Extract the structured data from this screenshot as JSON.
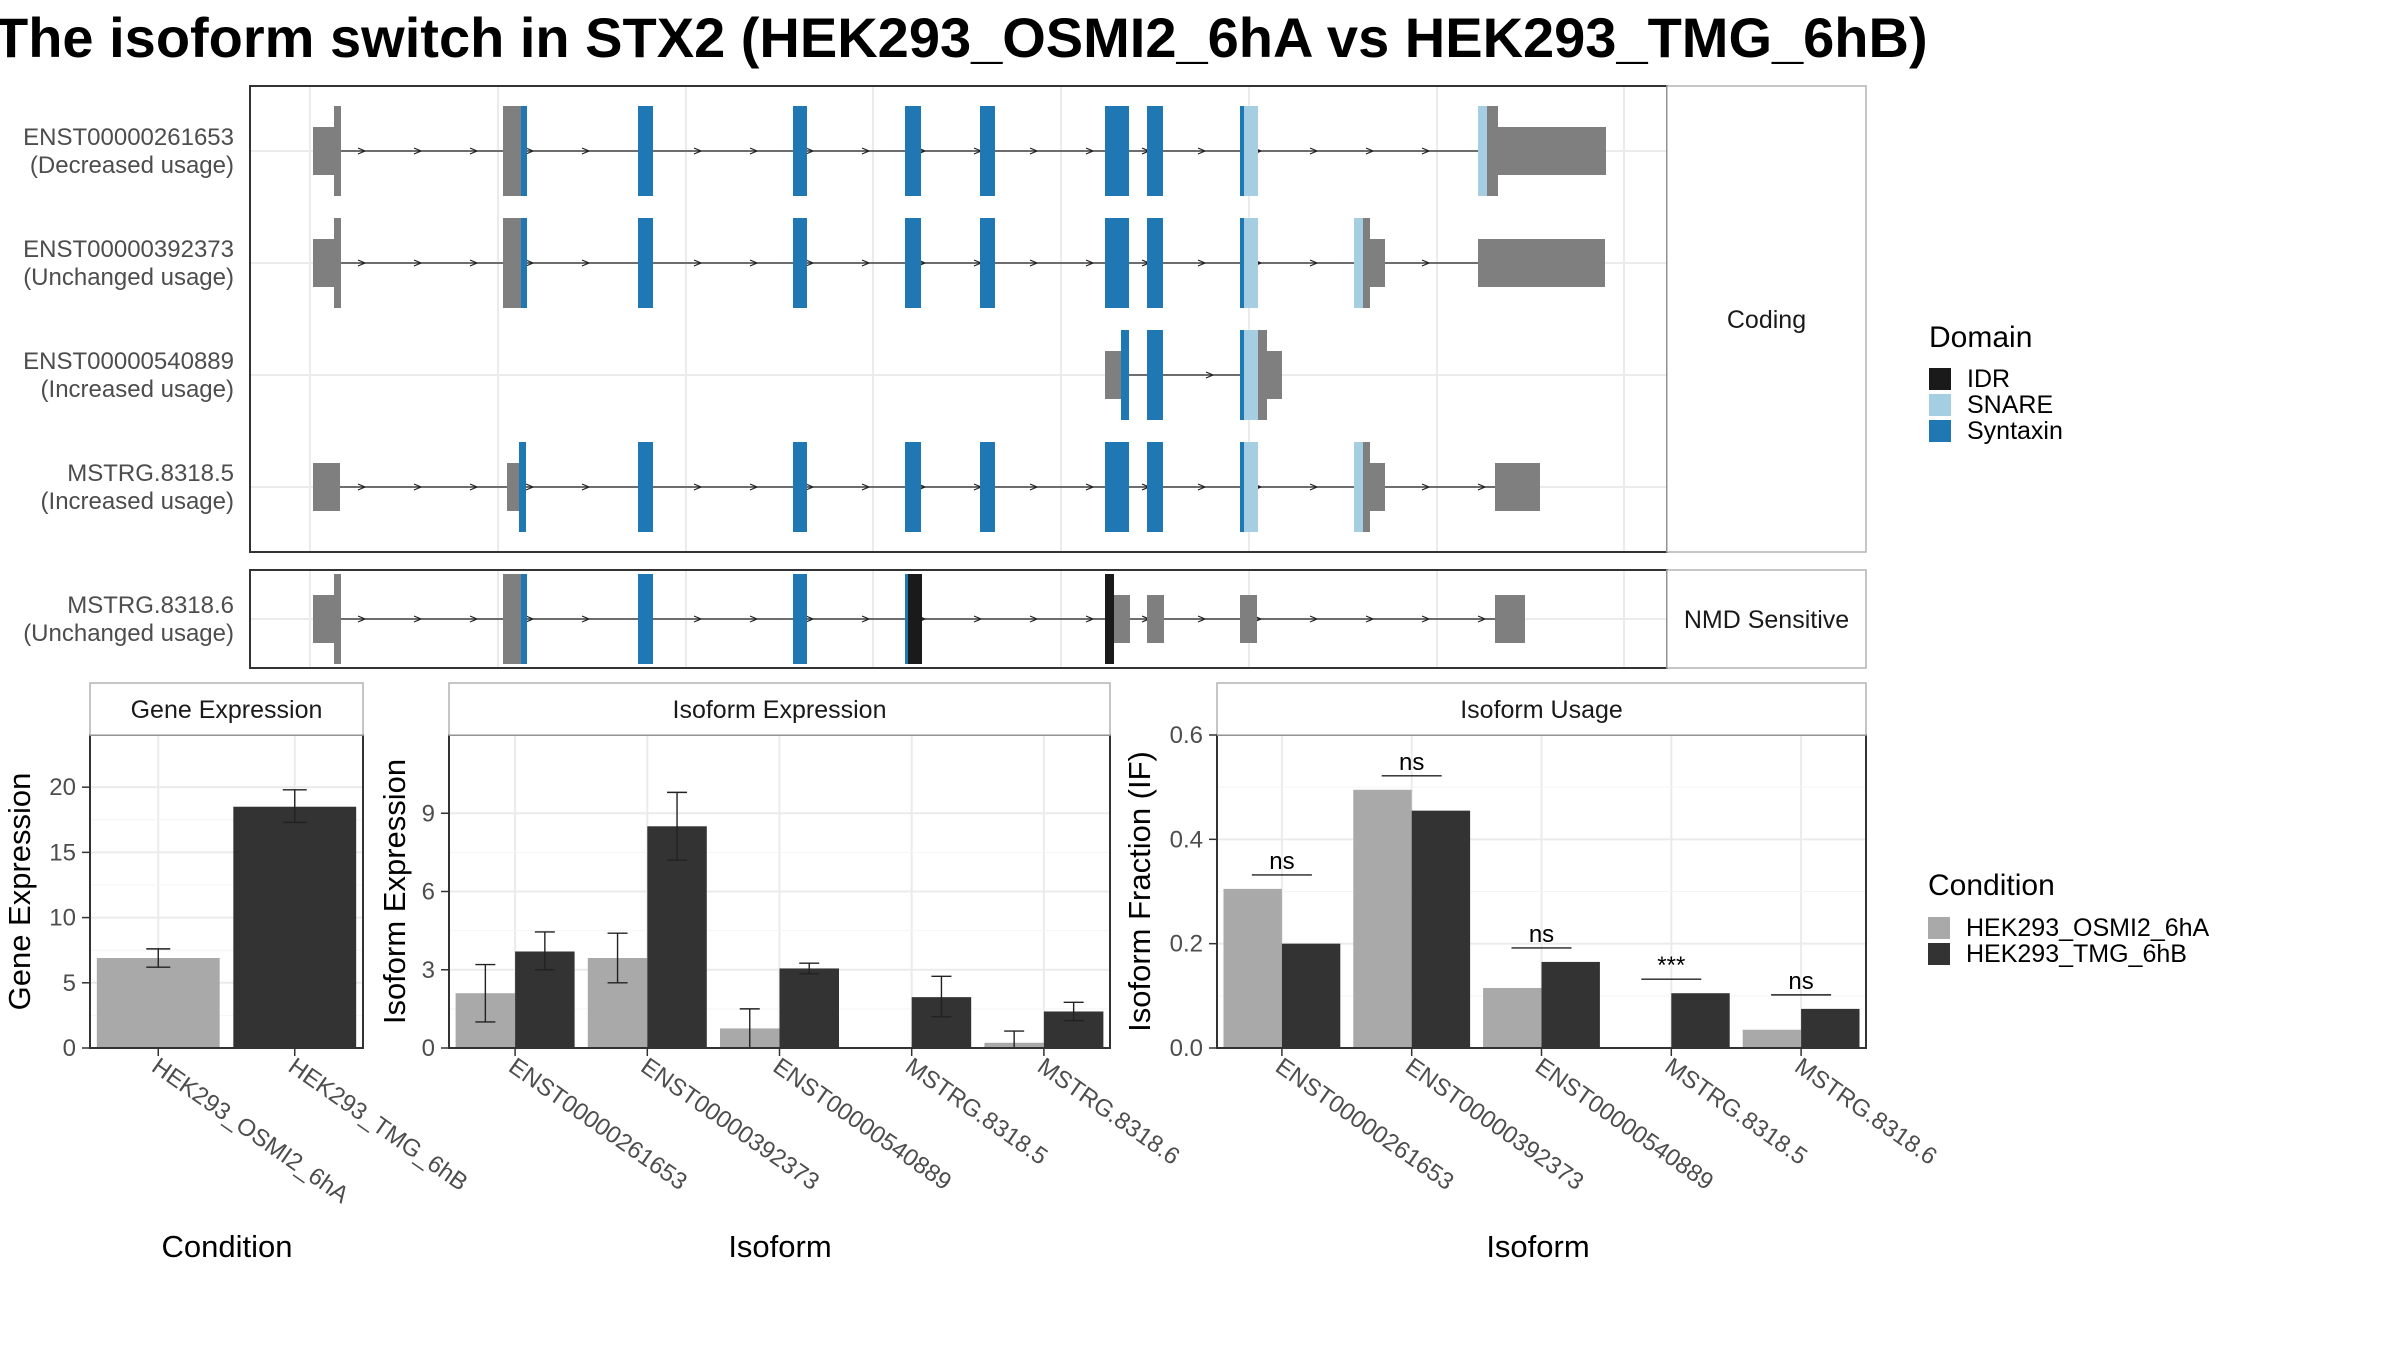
{
  "title": "The isoform switch in STX2 (HEK293_OSMI2_6hA vs HEK293_TMG_6hB)",
  "colors": {
    "utr": "#7f7f7f",
    "syntaxin": "#1f78b4",
    "snare": "#a6cee3",
    "idr": "#1a1a1a",
    "cond_a": "#a9a9a9",
    "cond_b": "#333333",
    "panel_border": "#333333",
    "strip_border": "#b3b3b3",
    "grid": "#ebebeb"
  },
  "structure": {
    "panels": [
      {
        "strip": "Coding",
        "transcripts": [
          {
            "id": "ENST00000261653",
            "usage": "(Decreased usage)"
          },
          {
            "id": "ENST00000392373",
            "usage": "(Unchanged usage)"
          },
          {
            "id": "ENST00000540889",
            "usage": "(Increased usage)"
          },
          {
            "id": "MSTRG.8318.5",
            "usage": "(Increased usage)"
          }
        ]
      },
      {
        "strip": "NMD Sensitive",
        "transcripts": [
          {
            "id": "MSTRG.8318.6",
            "usage": "(Unchanged usage)"
          }
        ]
      }
    ]
  },
  "domain_legend": {
    "title": "Domain",
    "items": [
      {
        "label": "IDR",
        "color": "#1a1a1a"
      },
      {
        "label": "SNARE",
        "color": "#a6cee3"
      },
      {
        "label": "Syntaxin",
        "color": "#1f78b4"
      }
    ]
  },
  "condition_legend": {
    "title": "Condition",
    "items": [
      {
        "label": "HEK293_OSMI2_6hA",
        "color": "#a9a9a9"
      },
      {
        "label": "HEK293_TMG_6hB",
        "color": "#333333"
      }
    ]
  },
  "chart_data": [
    {
      "type": "bar",
      "title": "Gene Expression",
      "xlabel": "Condition",
      "ylabel": "Gene Expression",
      "categories": [
        "HEK293_OSMI2_6hA",
        "HEK293_TMG_6hB"
      ],
      "values": [
        6.9,
        18.5
      ],
      "errors": [
        [
          6.2,
          7.6
        ],
        [
          17.3,
          19.8
        ]
      ],
      "ylim": [
        0,
        24
      ],
      "yticks": [
        0,
        5,
        10,
        15,
        20
      ]
    },
    {
      "type": "bar",
      "title": "Isoform Expression",
      "xlabel": "Isoform",
      "ylabel": "Isoform Expression",
      "categories": [
        "ENST00000261653",
        "ENST00000392373",
        "ENST00000540889",
        "MSTRG.8318.5",
        "MSTRG.8318.6"
      ],
      "series": [
        {
          "name": "HEK293_OSMI2_6hA",
          "values": [
            2.1,
            3.45,
            0.75,
            0.0,
            0.2
          ],
          "errors": [
            [
              1.0,
              3.2
            ],
            [
              2.5,
              4.4
            ],
            [
              0.0,
              1.5
            ],
            [
              0.0,
              0.0
            ],
            [
              0.0,
              0.65
            ]
          ]
        },
        {
          "name": "HEK293_TMG_6hB",
          "values": [
            3.7,
            8.5,
            3.05,
            1.95,
            1.4
          ],
          "errors": [
            [
              3.0,
              4.45
            ],
            [
              7.2,
              9.8
            ],
            [
              2.85,
              3.25
            ],
            [
              1.2,
              2.75
            ],
            [
              1.05,
              1.75
            ]
          ]
        }
      ],
      "ylim": [
        0,
        12
      ],
      "yticks": [
        0,
        3,
        6,
        9
      ]
    },
    {
      "type": "bar",
      "title": "Isoform Usage",
      "xlabel": "Isoform",
      "ylabel": "Isoform Fraction (IF)",
      "categories": [
        "ENST00000261653",
        "ENST00000392373",
        "ENST00000540889",
        "MSTRG.8318.5",
        "MSTRG.8318.6"
      ],
      "series": [
        {
          "name": "HEK293_OSMI2_6hA",
          "values": [
            0.305,
            0.495,
            0.115,
            0.0,
            0.035
          ]
        },
        {
          "name": "HEK293_TMG_6hB",
          "values": [
            0.2,
            0.455,
            0.165,
            0.105,
            0.075
          ]
        }
      ],
      "significance": [
        "ns",
        "ns",
        "ns",
        "***",
        "ns"
      ],
      "ylim": [
        0,
        0.6
      ],
      "yticks": [
        0.0,
        0.2,
        0.4,
        0.6
      ],
      "ytick_labels": [
        "0.0",
        "0.2",
        "0.4",
        "0.6"
      ]
    }
  ]
}
